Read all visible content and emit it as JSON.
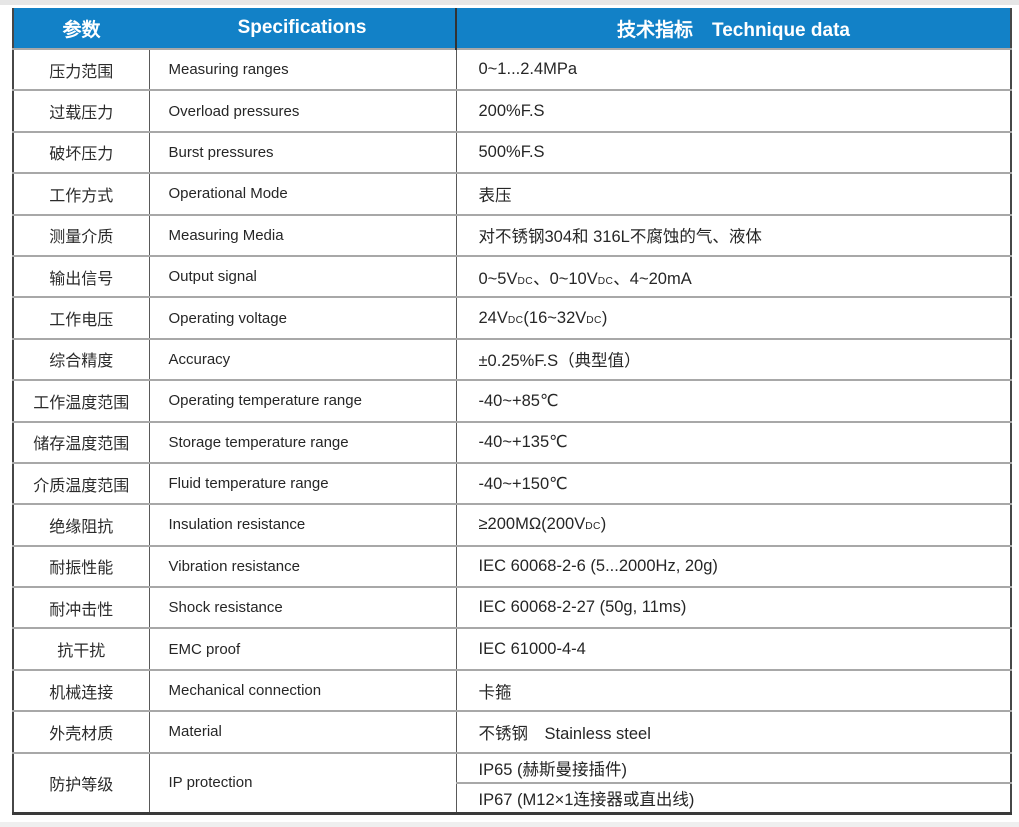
{
  "header": {
    "param": "参数",
    "specifications": "Specifications",
    "technique": "技术指标　Technique data"
  },
  "rows": [
    {
      "zh": "压力范围",
      "en": "Measuring ranges",
      "value": "0~1...2.4MPa"
    },
    {
      "zh": "过载压力",
      "en": "Overload pressures",
      "value": "200%F.S"
    },
    {
      "zh": "破坏压力",
      "en": "Burst pressures",
      "value": "500%F.S"
    },
    {
      "zh": "工作方式",
      "en": "Operational Mode",
      "value": "表压"
    },
    {
      "zh": "测量介质",
      "en": "Measuring Media",
      "value": "对不锈钢304和 316L不腐蚀的气、液体"
    },
    {
      "zh": "输出信号",
      "en": "Output signal",
      "value": [
        {
          "t": "0~5V"
        },
        {
          "t": "DC",
          "small": true
        },
        {
          "t": "、0~10V"
        },
        {
          "t": "DC",
          "small": true
        },
        {
          "t": "、4~20mA"
        }
      ]
    },
    {
      "zh": "工作电压",
      "en": "Operating voltage",
      "value": [
        {
          "t": "24V"
        },
        {
          "t": "DC",
          "small": true
        },
        {
          "t": "(16~32V"
        },
        {
          "t": "DC",
          "small": true
        },
        {
          "t": ")"
        }
      ]
    },
    {
      "zh": "综合精度",
      "en": "Accuracy",
      "value": "±0.25%F.S（典型值）"
    },
    {
      "zh": "工作温度范围",
      "en": "Operating temperature range",
      "value": "-40~+85℃"
    },
    {
      "zh": "储存温度范围",
      "en": "Storage temperature range",
      "value": "-40~+135℃"
    },
    {
      "zh": "介质温度范围",
      "en": "Fluid temperature range",
      "value": "-40~+150℃"
    },
    {
      "zh": "绝缘阻抗",
      "en": "Insulation resistance",
      "value": [
        {
          "t": "≥200MΩ(200V"
        },
        {
          "t": "DC",
          "small": true
        },
        {
          "t": ")"
        }
      ]
    },
    {
      "zh": "耐振性能",
      "en": "Vibration resistance",
      "value": "IEC 60068-2-6 (5...2000Hz, 20g)"
    },
    {
      "zh": "耐冲击性",
      "en": "Shock resistance",
      "value": "IEC 60068-2-27 (50g, 11ms)"
    },
    {
      "zh": "抗干扰",
      "en": "EMC proof",
      "value": "IEC 61000-4-4"
    },
    {
      "zh": "机械连接",
      "en": "Mechanical connection",
      "value": "卡箍"
    },
    {
      "zh": "外壳材质",
      "en": "Material",
      "value": "不锈钢　Stainless steel"
    },
    {
      "zh": "防护等级",
      "en": "IP protection",
      "values": [
        "IP65 (赫斯曼接插件)",
        "IP67 (M12×1连接器或直出线)"
      ]
    }
  ],
  "colors": {
    "header_bg": "#1281c7",
    "header_text": "#ffffff",
    "row_line": "#a8a8a8",
    "column_divider": "#595959",
    "outer_border": "#3a3a3a",
    "body_text": "#262626"
  }
}
